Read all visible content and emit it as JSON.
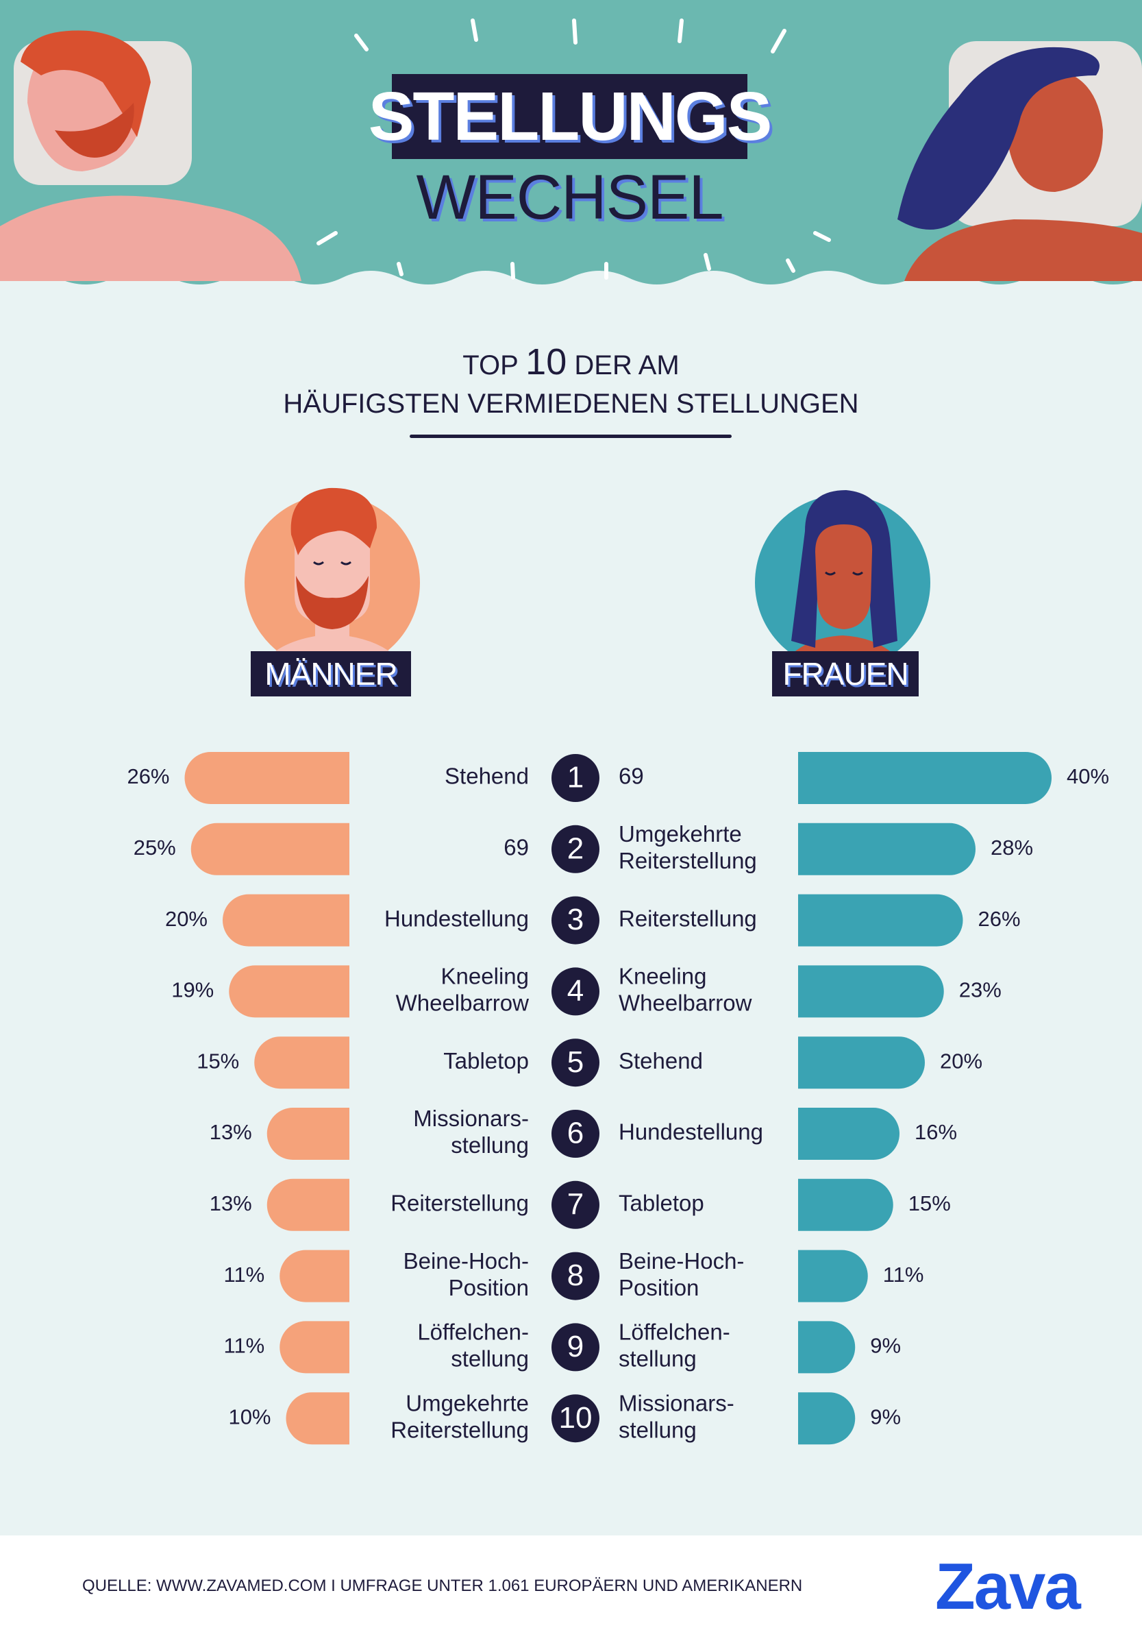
{
  "header": {
    "title_line1": "STELLUNGS",
    "title_line2": "WECHSEL"
  },
  "subtitle": {
    "pre": "TOP",
    "number": "10",
    "post": "DER AM",
    "line2": "HÄUFIGSTEN VERMIEDENEN STELLUNGEN"
  },
  "groups": {
    "men": "MÄNNER",
    "women": "FRAUEN"
  },
  "colors": {
    "men_bar": "#f5a27a",
    "women_bar": "#3aa3b3",
    "navy": "#1e1b3b",
    "header_bg": "#6bb8b0",
    "page_bg": "#e9f3f3"
  },
  "chart_data": {
    "type": "bar",
    "title": "TOP 10 DER AM HÄUFIGSTEN VERMIEDENEN STELLUNGEN",
    "ranks": [
      "1",
      "2",
      "3",
      "4",
      "5",
      "6",
      "7",
      "8",
      "9",
      "10"
    ],
    "series": [
      {
        "name": "MÄNNER",
        "categories": [
          [
            "Stehend"
          ],
          [
            "69"
          ],
          [
            "Hundestellung"
          ],
          [
            "Kneeling",
            "Wheelbarrow"
          ],
          [
            "Tabletop"
          ],
          [
            "Missionars-",
            "stellung"
          ],
          [
            "Reiterstellung"
          ],
          [
            "Beine-Hoch-",
            "Position"
          ],
          [
            "Löffelchen-",
            "stellung"
          ],
          [
            "Umgekehrte",
            "Reiterstellung"
          ]
        ],
        "values": [
          26,
          25,
          20,
          19,
          15,
          13,
          13,
          11,
          11,
          10
        ],
        "labels": [
          "26%",
          "25%",
          "20%",
          "19%",
          "15%",
          "13%",
          "13%",
          "11%",
          "11%",
          "10%"
        ]
      },
      {
        "name": "FRAUEN",
        "categories": [
          [
            "69"
          ],
          [
            "Umgekehrte",
            "Reiterstellung"
          ],
          [
            "Reiterstellung"
          ],
          [
            "Kneeling",
            "Wheelbarrow"
          ],
          [
            "Stehend"
          ],
          [
            "Hundestellung"
          ],
          [
            "Tabletop"
          ],
          [
            "Beine-Hoch-",
            "Position"
          ],
          [
            "Löffelchen-",
            "stellung"
          ],
          [
            "Missionars-",
            "stellung"
          ]
        ],
        "values": [
          40,
          28,
          26,
          23,
          20,
          16,
          15,
          11,
          9,
          9
        ],
        "labels": [
          "40%",
          "28%",
          "26%",
          "23%",
          "20%",
          "16%",
          "15%",
          "11%",
          "9%",
          "9%"
        ]
      }
    ]
  },
  "footer": {
    "source": "QUELLE: WWW.ZAVAMED.COM I UMFRAGE UNTER 1.061 EUROPÄERN UND AMERIKANERN",
    "logo": "Zava"
  }
}
